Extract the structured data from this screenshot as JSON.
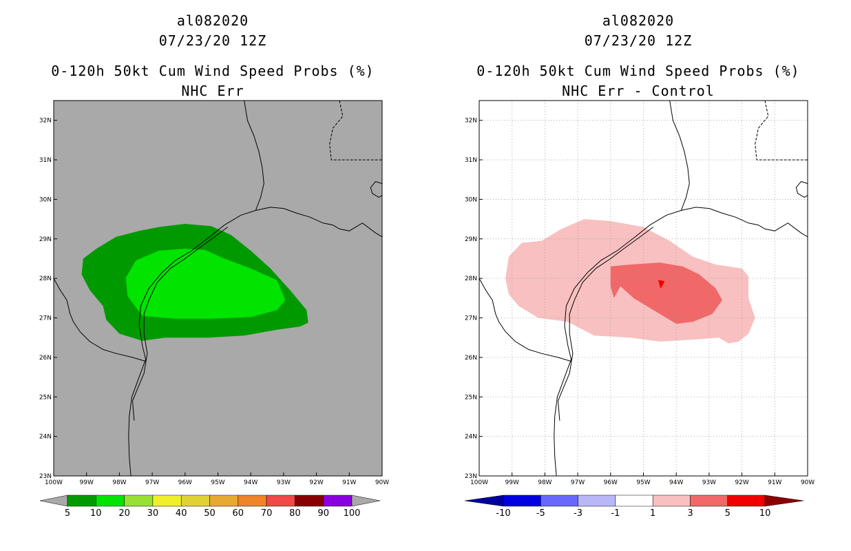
{
  "chart_data": [
    {
      "type": "contour-map",
      "storm_id": "al082020",
      "date": "07/23/20 12Z",
      "title": "0-120h 50kt Cum Wind Speed Probs (%)",
      "subtitle": "NHC Err",
      "background": "#a9a9a9",
      "show_grid": false,
      "lon_range": [
        -100,
        -90
      ],
      "lat_range": [
        23,
        32.5
      ],
      "x_ticks": [
        "100W",
        "99W",
        "98W",
        "97W",
        "96W",
        "95W",
        "94W",
        "93W",
        "92W",
        "91W",
        "90W"
      ],
      "y_ticks": [
        "23N",
        "24N",
        "25N",
        "26N",
        "27N",
        "28N",
        "29N",
        "30N",
        "31N",
        "32N"
      ],
      "colorbar": {
        "labels": [
          "5",
          "10",
          "20",
          "30",
          "40",
          "50",
          "60",
          "70",
          "80",
          "90",
          "100"
        ],
        "colors": [
          "#009a00",
          "#00e400",
          "#99e033",
          "#f0f02a",
          "#e0d232",
          "#e6aa30",
          "#f08228",
          "#f04848",
          "#880000",
          "#8800e0"
        ],
        "end_color": "#a9a9a9"
      },
      "contours": [
        {
          "level": "5-10",
          "color": "#009a00",
          "polygon": [
            [
              -99.1,
              28.5
            ],
            [
              -98.7,
              28.75
            ],
            [
              -98.1,
              29.05
            ],
            [
              -97.4,
              29.2
            ],
            [
              -96.8,
              29.3
            ],
            [
              -96.0,
              29.38
            ],
            [
              -95.2,
              29.32
            ],
            [
              -94.6,
              29.1
            ],
            [
              -94.0,
              28.7
            ],
            [
              -93.4,
              28.25
            ],
            [
              -92.8,
              27.7
            ],
            [
              -92.3,
              27.2
            ],
            [
              -92.25,
              26.88
            ],
            [
              -92.5,
              26.78
            ],
            [
              -93.2,
              26.7
            ],
            [
              -94.2,
              26.55
            ],
            [
              -95.3,
              26.5
            ],
            [
              -96.6,
              26.5
            ],
            [
              -97.3,
              26.42
            ],
            [
              -98.0,
              26.6
            ],
            [
              -98.4,
              26.95
            ],
            [
              -98.5,
              27.3
            ],
            [
              -98.9,
              27.7
            ],
            [
              -99.15,
              28.1
            ]
          ]
        },
        {
          "level": "10-20",
          "color": "#00e400",
          "polygon": [
            [
              -97.8,
              28.02
            ],
            [
              -97.5,
              28.45
            ],
            [
              -96.8,
              28.7
            ],
            [
              -96.0,
              28.75
            ],
            [
              -95.4,
              28.72
            ],
            [
              -94.8,
              28.5
            ],
            [
              -94.0,
              28.25
            ],
            [
              -93.2,
              27.95
            ],
            [
              -92.95,
              27.45
            ],
            [
              -93.2,
              27.2
            ],
            [
              -94.0,
              27.02
            ],
            [
              -95.2,
              26.98
            ],
            [
              -96.3,
              26.98
            ],
            [
              -97.3,
              27.05
            ],
            [
              -97.75,
              27.55
            ]
          ]
        }
      ]
    },
    {
      "type": "contour-map",
      "storm_id": "al082020",
      "date": "07/23/20 12Z",
      "title": "0-120h 50kt Cum Wind Speed Probs (%)",
      "subtitle": "NHC Err - Control",
      "background": "#ffffff",
      "show_grid": true,
      "lon_range": [
        -100,
        -90
      ],
      "lat_range": [
        23,
        32.5
      ],
      "x_ticks": [
        "100W",
        "99W",
        "98W",
        "97W",
        "96W",
        "95W",
        "94W",
        "93W",
        "92W",
        "91W",
        "90W"
      ],
      "y_ticks": [
        "23N",
        "24N",
        "25N",
        "26N",
        "27N",
        "28N",
        "29N",
        "30N",
        "31N",
        "32N"
      ],
      "colorbar": {
        "labels": [
          "-10",
          "-5",
          "-3",
          "-1",
          "1",
          "3",
          "5",
          "10"
        ],
        "colors": [
          "#0000e0",
          "#6868ff",
          "#b8b8f8",
          "#ffffff",
          "#f8c0c0",
          "#f06868",
          "#f00000"
        ],
        "start_color": "#0000a0",
        "end_color": "#8b0000"
      },
      "contours": [
        {
          "level": "1-3",
          "color": "#f8c0c0",
          "polygon": [
            [
              -99.2,
              28.0
            ],
            [
              -99.1,
              28.55
            ],
            [
              -98.7,
              28.9
            ],
            [
              -98.1,
              28.95
            ],
            [
              -97.5,
              29.25
            ],
            [
              -96.8,
              29.5
            ],
            [
              -96.0,
              29.45
            ],
            [
              -95.0,
              29.3
            ],
            [
              -94.2,
              28.95
            ],
            [
              -93.5,
              28.55
            ],
            [
              -92.8,
              28.35
            ],
            [
              -92.0,
              28.25
            ],
            [
              -91.8,
              28.05
            ],
            [
              -91.8,
              27.5
            ],
            [
              -91.6,
              27.0
            ],
            [
              -91.8,
              26.6
            ],
            [
              -92.1,
              26.4
            ],
            [
              -92.4,
              26.35
            ],
            [
              -92.7,
              26.5
            ],
            [
              -93.5,
              26.45
            ],
            [
              -94.5,
              26.4
            ],
            [
              -95.4,
              26.5
            ],
            [
              -96.5,
              26.55
            ],
            [
              -97.3,
              26.9
            ],
            [
              -98.2,
              27.0
            ],
            [
              -98.8,
              27.3
            ],
            [
              -99.1,
              27.6
            ]
          ]
        },
        {
          "level": "3-5",
          "color": "#f06868",
          "polygon": [
            [
              -96.0,
              28.3
            ],
            [
              -95.4,
              28.35
            ],
            [
              -94.5,
              28.4
            ],
            [
              -93.8,
              28.3
            ],
            [
              -93.3,
              28.1
            ],
            [
              -92.8,
              27.75
            ],
            [
              -92.6,
              27.45
            ],
            [
              -92.9,
              27.1
            ],
            [
              -93.5,
              26.9
            ],
            [
              -94.0,
              26.85
            ],
            [
              -94.7,
              27.2
            ],
            [
              -95.3,
              27.5
            ],
            [
              -95.7,
              27.8
            ],
            [
              -95.9,
              27.5
            ],
            [
              -96.0,
              27.8
            ]
          ]
        },
        {
          "level": "5-10",
          "color": "#f00000",
          "polygon": [
            [
              -94.55,
              27.96
            ],
            [
              -94.35,
              27.93
            ],
            [
              -94.48,
              27.74
            ]
          ]
        }
      ]
    }
  ]
}
